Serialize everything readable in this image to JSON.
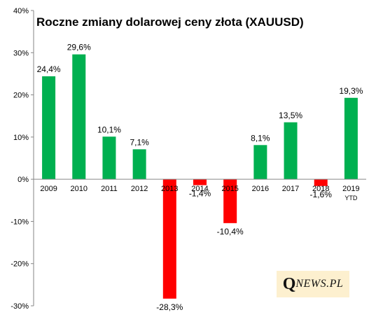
{
  "chart_data": {
    "type": "bar",
    "title": "Roczne zmiany dolarowej ceny złota (XAUUSD)",
    "xlabel": "",
    "ylabel": "",
    "categories": [
      "2009",
      "2010",
      "2011",
      "2012",
      "2013",
      "2014",
      "2015",
      "2016",
      "2017",
      "2018",
      "2019"
    ],
    "category_sublabels": [
      "",
      "",
      "",
      "",
      "",
      "",
      "",
      "",
      "",
      "",
      "YTD"
    ],
    "values": [
      24.4,
      29.6,
      10.1,
      7.1,
      -28.3,
      -1.4,
      -10.4,
      8.1,
      13.5,
      -1.6,
      19.3
    ],
    "data_labels": [
      "24,4%",
      "29,6%",
      "10,1%",
      "7,1%",
      "-28,3%",
      "-1,4%",
      "-10,4%",
      "8,1%",
      "13,5%",
      "-1,6%",
      "19,3%"
    ],
    "ylim": [
      -30,
      40
    ],
    "yticks": [
      40,
      30,
      20,
      10,
      0,
      -10,
      -20,
      -30
    ],
    "ytick_labels": [
      "40%",
      "30%",
      "20%",
      "10%",
      "0%",
      "-10%",
      "-20%",
      "-30%"
    ],
    "grid": false,
    "legend": "none",
    "colors": {
      "positive": "#00b050",
      "negative": "#ff0000",
      "axis": "#868686"
    }
  },
  "logo": {
    "q": "Q",
    "rest": "NEWS.PL"
  }
}
